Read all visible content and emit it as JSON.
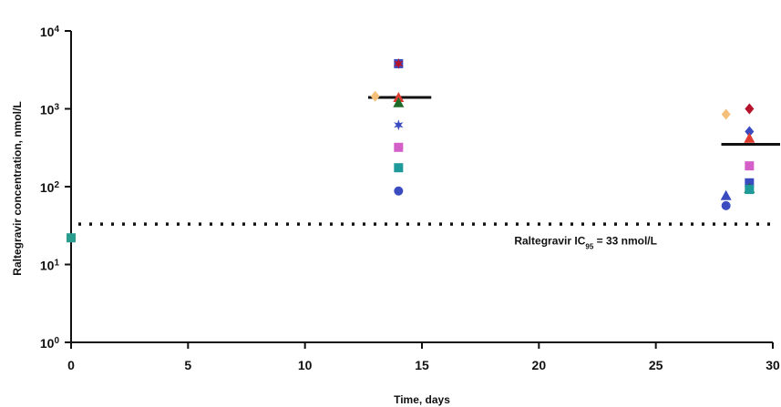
{
  "chart_data": {
    "type": "scatter",
    "title": "",
    "xlabel": "Time, days",
    "ylabel": "Raltegravir concentration, nmol/L",
    "xlim": [
      0,
      30
    ],
    "ylim": [
      1,
      10000
    ],
    "yscale": "log",
    "grid": false,
    "x_ticks": [
      0,
      5,
      10,
      15,
      20,
      25,
      30
    ],
    "x_tick_labels": [
      "0",
      "5",
      "10",
      "15",
      "20",
      "25",
      "30"
    ],
    "y_ticks": [
      1,
      10,
      100,
      1000,
      10000
    ],
    "y_tick_labels": [
      {
        "base": "10",
        "exp": "0"
      },
      {
        "base": "10",
        "exp": "1"
      },
      {
        "base": "10",
        "exp": "2"
      },
      {
        "base": "10",
        "exp": "3"
      },
      {
        "base": "10",
        "exp": "4"
      }
    ],
    "points": [
      {
        "x": 0,
        "y": 22,
        "marker": "square",
        "color": "#2a9d8f"
      },
      {
        "x": 13,
        "y": 1450,
        "marker": "diamond",
        "color": "#f4c07a"
      },
      {
        "x": 14,
        "y": 3800,
        "marker": "square",
        "color": "#3b4cc0"
      },
      {
        "x": 14,
        "y": 3800,
        "marker": "star",
        "color": "#b5122b"
      },
      {
        "x": 14,
        "y": 1400,
        "marker": "triangle",
        "color": "#e03c31"
      },
      {
        "x": 14,
        "y": 1200,
        "marker": "triangle",
        "color": "#1f6b2a"
      },
      {
        "x": 14,
        "y": 620,
        "marker": "star",
        "color": "#3b4cc0"
      },
      {
        "x": 14,
        "y": 320,
        "marker": "square",
        "color": "#d45fc8"
      },
      {
        "x": 14,
        "y": 175,
        "marker": "square",
        "color": "#1f9a9a"
      },
      {
        "x": 14,
        "y": 88,
        "marker": "circle",
        "color": "#3b4cc0"
      },
      {
        "x": 28,
        "y": 850,
        "marker": "diamond",
        "color": "#f4c07a"
      },
      {
        "x": 29,
        "y": 1000,
        "marker": "diamond",
        "color": "#b5122b"
      },
      {
        "x": 29,
        "y": 510,
        "marker": "diamond",
        "color": "#3b4cc0"
      },
      {
        "x": 29,
        "y": 420,
        "marker": "triangle",
        "color": "#e03c31"
      },
      {
        "x": 29,
        "y": 185,
        "marker": "square",
        "color": "#d45fc8"
      },
      {
        "x": 29,
        "y": 112,
        "marker": "square",
        "color": "#3b4cc0"
      },
      {
        "x": 29,
        "y": 95,
        "marker": "triangle",
        "color": "#1f6b2a"
      },
      {
        "x": 29,
        "y": 92,
        "marker": "square",
        "color": "#1f9a9a"
      },
      {
        "x": 28,
        "y": 77,
        "marker": "triangle",
        "color": "#3b4cc0"
      },
      {
        "x": 28,
        "y": 57,
        "marker": "circle",
        "color": "#3b4cc0"
      }
    ],
    "medians": [
      {
        "x_from": 12.7,
        "x_to": 15.4,
        "y": 1400
      },
      {
        "x_from": 27.8,
        "x_to": 30.5,
        "y": 350
      }
    ],
    "reference_line": {
      "y": 33,
      "style": "dotted"
    },
    "annotation": {
      "text_before": "Raltegravir  IC",
      "subscript": "95",
      "text_after": " = 33 nmol/L",
      "x": 22,
      "y": 18
    }
  }
}
